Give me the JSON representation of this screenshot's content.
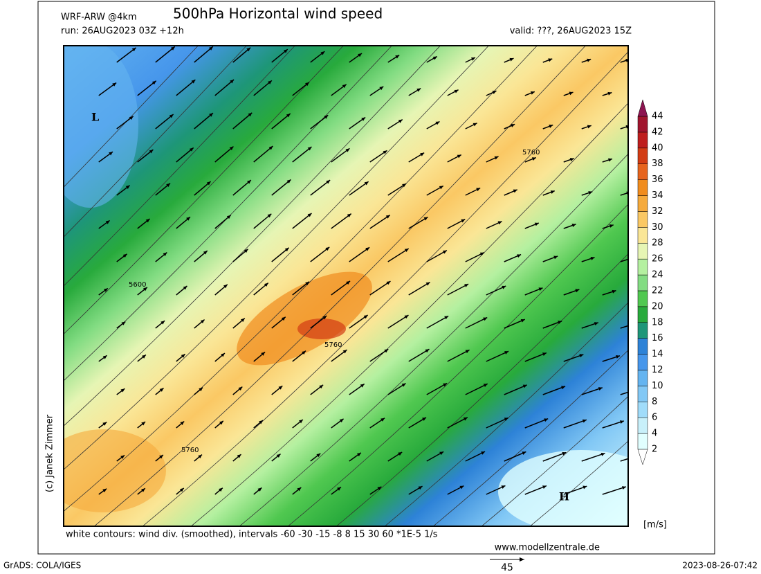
{
  "header": {
    "model": "WRF-ARW @4km",
    "title": "500hPa Horizontal wind speed",
    "run": "run: 26AUG2023 03Z +12h",
    "valid": "valid: ???, 26AUG2023 15Z"
  },
  "map": {
    "pressure_labels": [
      "L",
      "H"
    ],
    "contour_labels": [
      "5760",
      "5600",
      "5760",
      "5760"
    ]
  },
  "colorbar": {
    "ticks": [
      2,
      4,
      6,
      8,
      10,
      12,
      14,
      16,
      18,
      20,
      22,
      24,
      26,
      28,
      30,
      32,
      34,
      36,
      38,
      40,
      42,
      44
    ],
    "colors": [
      "#e1ffff",
      "#c8f0fa",
      "#a0dcfa",
      "#82c8f5",
      "#64b4f0",
      "#4696eb",
      "#2d82d7",
      "#1e9678",
      "#28aa3c",
      "#50c850",
      "#82dc82",
      "#b4f0a0",
      "#e6f5b4",
      "#fae696",
      "#fac864",
      "#f5aa3c",
      "#f08c1e",
      "#e6641e",
      "#d23c14",
      "#be1e1e",
      "#a0142d"
    ],
    "unit": "[m/s]"
  },
  "footer": {
    "contours_note": "white contours: wind div. (smoothed), intervals -60 -30 -15 -8 8 15 30 60 *1E-5 1/s",
    "website": "www.modellzentrale.de",
    "grads": "GrADS: COLA/IGES",
    "timestamp": "2023-08-26-07:42",
    "vector_ref": "45",
    "credit": "(c) Janek Zimmer"
  }
}
